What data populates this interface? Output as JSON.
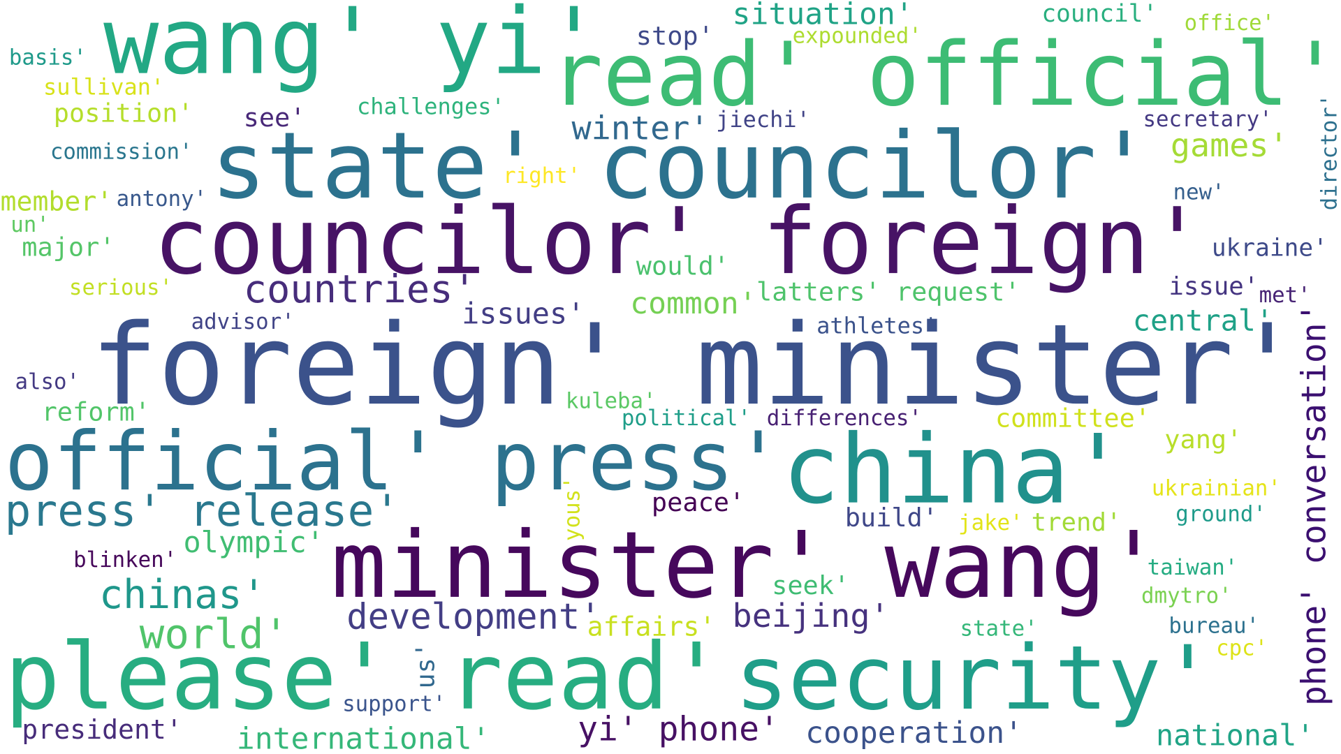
{
  "words": [
    {
      "text": "wang' yi'",
      "color": "#22a884"
    },
    {
      "text": "read' official'",
      "color": "#3dbc74"
    },
    {
      "text": "state' councilor'",
      "color": "#2c728e"
    },
    {
      "text": "councilor' foreign'",
      "color": "#471365"
    },
    {
      "text": "foreign' minister'",
      "color": "#3b528b"
    },
    {
      "text": "official' press'",
      "color": "#2c728e"
    },
    {
      "text": "china'",
      "color": "#21918c"
    },
    {
      "text": "press' release'",
      "color": "#2a788e"
    },
    {
      "text": "minister' wang'",
      "color": "#46085c"
    },
    {
      "text": "please' read'",
      "color": "#27ad81"
    },
    {
      "text": "security'",
      "color": "#1f9e89"
    },
    {
      "text": "situation'",
      "color": "#20a386"
    },
    {
      "text": "council'",
      "color": "#29af7f"
    },
    {
      "text": "office'",
      "color": "#a0da39"
    },
    {
      "text": "expounded'",
      "color": "#addc30"
    },
    {
      "text": "stop'",
      "color": "#3e4989"
    },
    {
      "text": "basis'",
      "color": "#1f9a8a"
    },
    {
      "text": "sullivan'",
      "color": "#d8e219"
    },
    {
      "text": "position'",
      "color": "#b5de2b"
    },
    {
      "text": "see'",
      "color": "#482878"
    },
    {
      "text": "challenges'",
      "color": "#2eb37c"
    },
    {
      "text": "winter'",
      "color": "#31688e"
    },
    {
      "text": "jiechi'",
      "color": "#414487"
    },
    {
      "text": "secretary'",
      "color": "#443983"
    },
    {
      "text": "games'",
      "color": "#a5db36"
    },
    {
      "text": "director'",
      "color": "#2d708e"
    },
    {
      "text": "commission'",
      "color": "#2a768e"
    },
    {
      "text": "right'",
      "color": "#fde725"
    },
    {
      "text": "member'",
      "color": "#b2dd2d"
    },
    {
      "text": "antony'",
      "color": "#38588c"
    },
    {
      "text": "new'",
      "color": "#355f8d"
    },
    {
      "text": "un'",
      "color": "#5ec962"
    },
    {
      "text": "major'",
      "color": "#54c568"
    },
    {
      "text": "ukraine'",
      "color": "#3e4a89"
    },
    {
      "text": "would'",
      "color": "#4ac16d"
    },
    {
      "text": "countries'",
      "color": "#472d7b"
    },
    {
      "text": "serious'",
      "color": "#c2df23"
    },
    {
      "text": "issue'",
      "color": "#453581"
    },
    {
      "text": "met'",
      "color": "#482475"
    },
    {
      "text": "common'",
      "color": "#75d054"
    },
    {
      "text": "latters' request'",
      "color": "#4ec36b"
    },
    {
      "text": "issues'",
      "color": "#433e85"
    },
    {
      "text": "central'",
      "color": "#1fa187"
    },
    {
      "text": "phone' conversation'",
      "color": "#3b0f70"
    },
    {
      "text": "advisor'",
      "color": "#414487"
    },
    {
      "text": "athletes'",
      "color": "#3b528b"
    },
    {
      "text": "also'",
      "color": "#443a83"
    },
    {
      "text": "kuleba'",
      "color": "#5ac864"
    },
    {
      "text": "reform'",
      "color": "#52c569"
    },
    {
      "text": "political'",
      "color": "#1f9e89"
    },
    {
      "text": "differences'",
      "color": "#482173"
    },
    {
      "text": "committee'",
      "color": "#d0e11c"
    },
    {
      "text": "yang'",
      "color": "#b8de29"
    },
    {
      "text": "ukrainian'",
      "color": "#e5e419"
    },
    {
      "text": "yous'",
      "color": "#d2e21b"
    },
    {
      "text": "peace'",
      "color": "#440154"
    },
    {
      "text": "build'",
      "color": "#3f4788"
    },
    {
      "text": "jake'",
      "color": "#e2e418"
    },
    {
      "text": "trend'",
      "color": "#a2da37"
    },
    {
      "text": "ground'",
      "color": "#1e9b8a"
    },
    {
      "text": "olympic'",
      "color": "#40bd72"
    },
    {
      "text": "blinken'",
      "color": "#450559"
    },
    {
      "text": "taiwan'",
      "color": "#25ac82"
    },
    {
      "text": "chinas'",
      "color": "#1f978b"
    },
    {
      "text": "seek'",
      "color": "#3fbc73"
    },
    {
      "text": "dmytro'",
      "color": "#7ad151"
    },
    {
      "text": "development'",
      "color": "#433e85"
    },
    {
      "text": "beijing'",
      "color": "#46327e"
    },
    {
      "text": "affairs'",
      "color": "#c8e020"
    },
    {
      "text": "bureau'",
      "color": "#2c718e"
    },
    {
      "text": "world'",
      "color": "#50c46a"
    },
    {
      "text": "state'",
      "color": "#35b779"
    },
    {
      "text": "cpc'",
      "color": "#dde318"
    },
    {
      "text": "us'",
      "color": "#31688e"
    },
    {
      "text": "support'",
      "color": "#3a548c"
    },
    {
      "text": "president'",
      "color": "#472c7a"
    },
    {
      "text": "international'",
      "color": "#35b779"
    },
    {
      "text": "yi' phone'",
      "color": "#471164"
    },
    {
      "text": "cooperation'",
      "color": "#3b528b"
    },
    {
      "text": "national'",
      "color": "#20a486"
    }
  ]
}
